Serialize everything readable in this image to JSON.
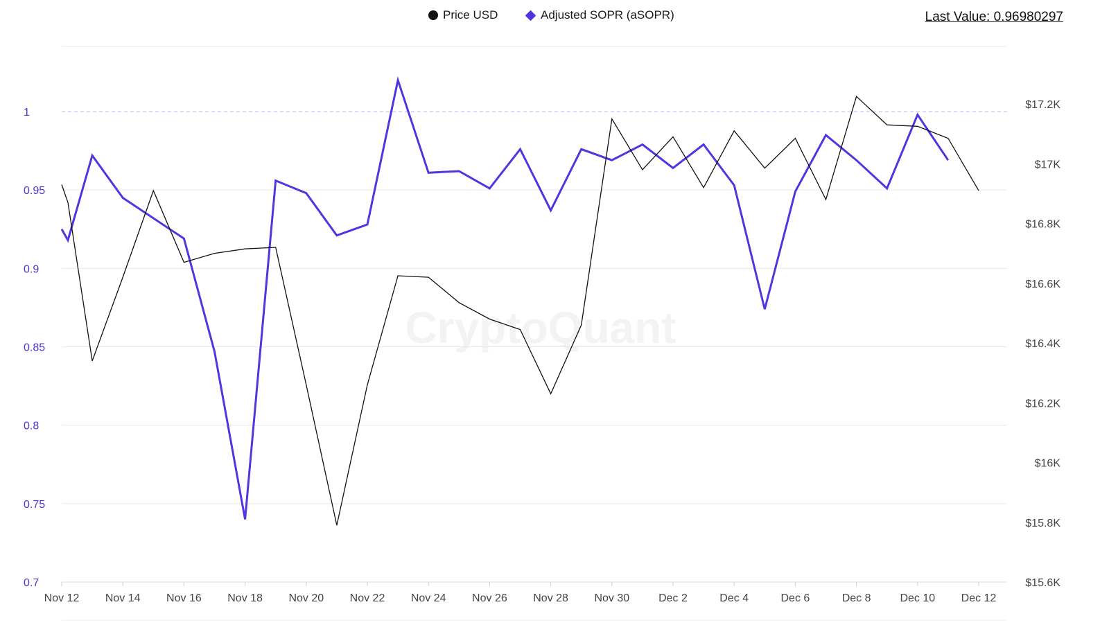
{
  "legend": {
    "price_label": "Price USD",
    "asopr_label": "Adjusted SOPR (aSOPR)"
  },
  "last_value": "Last Value: 0.96980297",
  "watermark": "CryptoQuant",
  "colors": {
    "price": "#111111",
    "asopr": "#5234e0",
    "grid": "#e6e6e6",
    "reference": "#b8b4e8"
  },
  "chart_data": {
    "type": "line",
    "title": "",
    "x_ticks": [
      "Nov 12",
      "Nov 14",
      "Nov 16",
      "Nov 18",
      "Nov 20",
      "Nov 22",
      "Nov 24",
      "Nov 26",
      "Nov 28",
      "Nov 30",
      "Dec 2",
      "Dec 4",
      "Dec 6",
      "Dec 8",
      "Dec 10",
      "Dec 12"
    ],
    "y_left": {
      "ticks": [
        "0.7",
        "0.75",
        "0.8",
        "0.85",
        "0.9",
        "0.95",
        "1"
      ],
      "range": [
        0.7,
        1.03
      ],
      "reference_line": 1
    },
    "y_right": {
      "ticks": [
        "$15.6K",
        "$15.8K",
        "$16K",
        "$16.2K",
        "$16.4K",
        "$16.6K",
        "$16.8K",
        "$17K",
        "$17.2K"
      ],
      "range": [
        15600,
        17360
      ]
    },
    "grid": true,
    "legend_position": "top-center",
    "series": [
      {
        "name": "Adjusted SOPR (aSOPR)",
        "axis": "left",
        "x": [
          "Nov 12",
          "Nov 12",
          "Nov 13",
          "Nov 14",
          "Nov 16",
          "Nov 17",
          "Nov 18",
          "Nov 19",
          "Nov 20",
          "Nov 21",
          "Nov 22",
          "Nov 23",
          "Nov 24",
          "Nov 25",
          "Nov 26",
          "Nov 27",
          "Nov 28",
          "Nov 29",
          "Nov 30",
          "Dec 1",
          "Dec 2",
          "Dec 3",
          "Dec 4",
          "Dec 5",
          "Dec 6",
          "Dec 7",
          "Dec 8",
          "Dec 9",
          "Dec 10",
          "Dec 11"
        ],
        "values": [
          0.925,
          0.918,
          0.972,
          0.945,
          0.919,
          0.847,
          0.74,
          0.956,
          0.948,
          0.921,
          0.928,
          1.02,
          0.961,
          0.962,
          0.951,
          0.976,
          0.937,
          0.976,
          0.969,
          0.979,
          0.964,
          0.979,
          0.953,
          0.874,
          0.949,
          0.985,
          0.969,
          0.951,
          0.998,
          0.969
        ]
      },
      {
        "name": "Price USD",
        "axis": "right",
        "x": [
          "Nov 12",
          "Nov 12",
          "Nov 13",
          "Nov 14",
          "Nov 15",
          "Nov 16",
          "Nov 17",
          "Nov 18",
          "Nov 19",
          "Nov 20",
          "Nov 21",
          "Nov 22",
          "Nov 23",
          "Nov 24",
          "Nov 25",
          "Nov 26",
          "Nov 27",
          "Nov 28",
          "Nov 29",
          "Nov 30",
          "Dec 1",
          "Dec 2",
          "Dec 3",
          "Dec 4",
          "Dec 5",
          "Dec 6",
          "Dec 7",
          "Dec 8",
          "Dec 9",
          "Dec 10",
          "Dec 11",
          "Dec 12"
        ],
        "values": [
          16930,
          16870,
          16340,
          16620,
          16910,
          16670,
          16700,
          16715,
          16720,
          16260,
          15790,
          16260,
          16625,
          16620,
          16535,
          16480,
          16445,
          16230,
          16460,
          17150,
          16980,
          17090,
          16920,
          17110,
          16985,
          17085,
          16880,
          17225,
          17130,
          17125,
          17085,
          16910
        ]
      }
    ]
  }
}
